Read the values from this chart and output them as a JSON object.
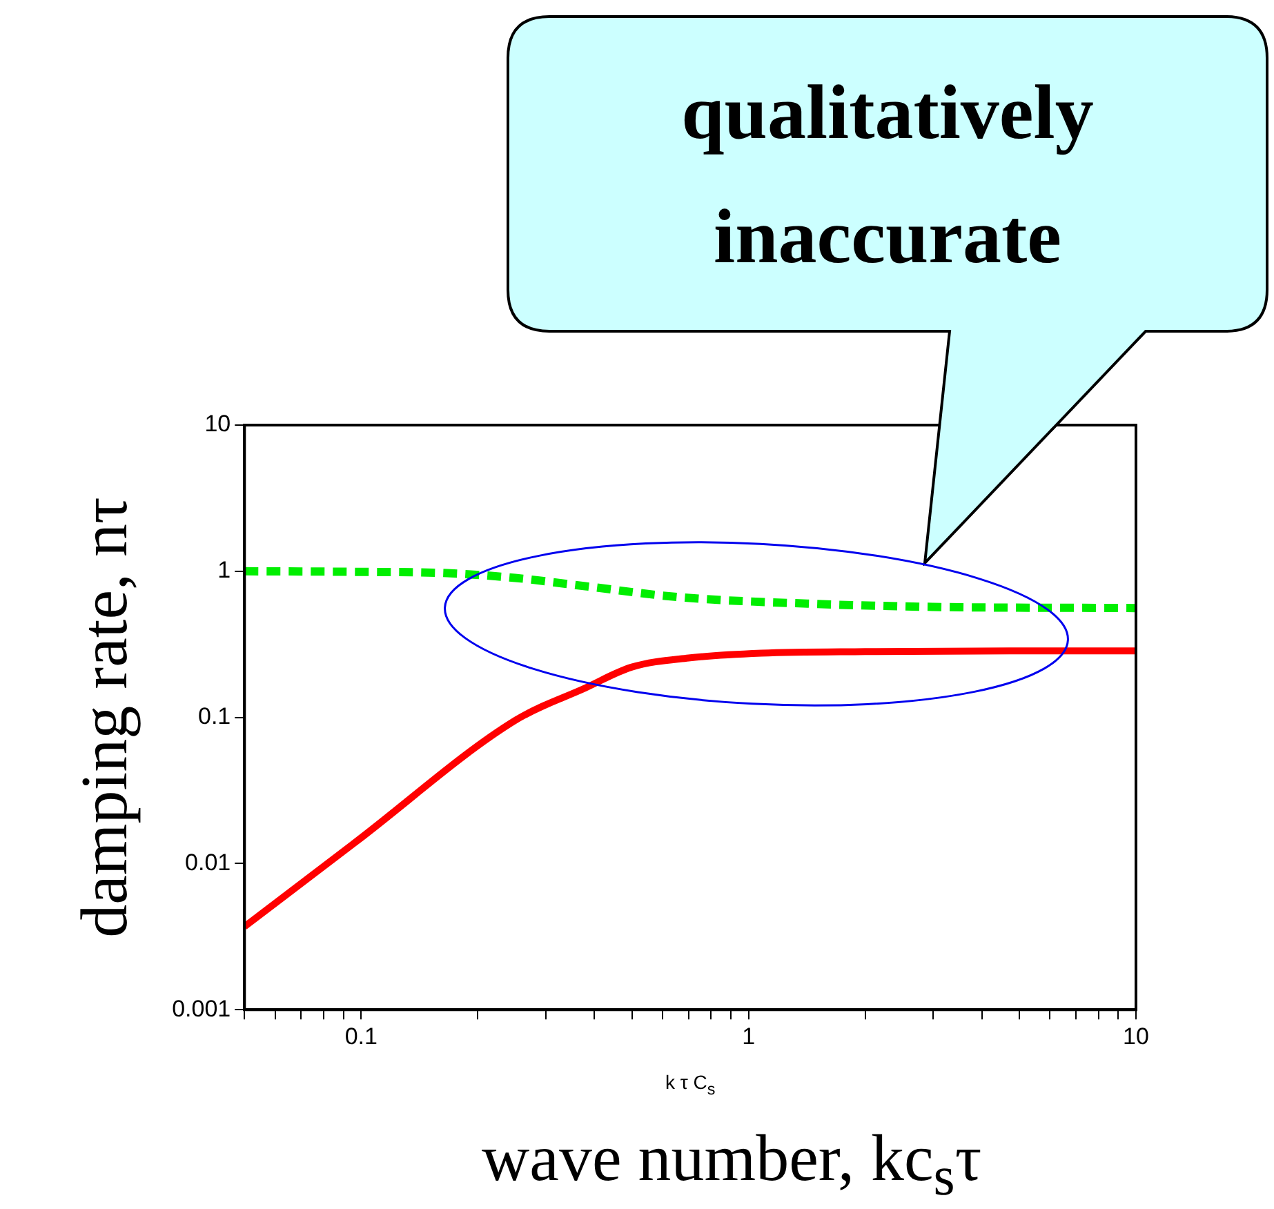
{
  "chart_data": {
    "type": "line",
    "xlabel": "k τ C$_{s}$",
    "ylabel": "damping rate, nτ",
    "annotations": [
      "qualitatively inaccurate",
      "wave number, kc$_{s}$τ"
    ],
    "log": "xy",
    "grid": false,
    "legend": false,
    "marker": "none",
    "xlim": [
      0.05,
      10
    ],
    "ylim": [
      0.001,
      10
    ],
    "xticks": [
      {
        "value": 0.05,
        "label": null
      },
      {
        "value": 0.06,
        "label": null
      },
      {
        "value": 0.07,
        "label": null
      },
      {
        "value": 0.08,
        "label": null
      },
      {
        "value": 0.09,
        "label": null
      },
      0.1,
      {
        "value": 0.2,
        "label": null
      },
      {
        "value": 0.3,
        "label": null
      },
      {
        "value": 0.4,
        "label": null
      },
      {
        "value": 0.5,
        "label": null
      },
      {
        "value": 0.6,
        "label": null
      },
      {
        "value": 0.7,
        "label": null
      },
      {
        "value": 0.8,
        "label": null
      },
      {
        "value": 0.9,
        "label": null
      },
      1,
      {
        "value": 2,
        "label": null
      },
      {
        "value": 3,
        "label": null
      },
      {
        "value": 4,
        "label": null
      },
      {
        "value": 5,
        "label": null
      },
      {
        "value": 6,
        "label": null
      },
      {
        "value": 7,
        "label": null
      },
      {
        "value": 8,
        "label": null
      },
      {
        "value": 9,
        "label": null
      },
      10
    ],
    "yticks": [
      0.001,
      0.01,
      0.1,
      1,
      10
    ],
    "series": [
      {
        "color": "#ff0000",
        "line_style": "solid",
        "x": [
          0.05,
          0.097,
          0.251,
          0.379,
          0.5,
          0.7,
          1.08,
          2,
          5,
          10
        ],
        "values": [
          0.0037,
          0.0141,
          0.096,
          0.159,
          0.221,
          0.255,
          0.275,
          0.282,
          0.285,
          0.285
        ]
      },
      {
        "color": "#00ee00",
        "line_style": "dashed",
        "x": [
          0.05,
          0.1,
          0.167,
          0.25,
          0.379,
          0.66,
          1.42,
          3,
          10
        ],
        "values": [
          1.0,
          0.99,
          0.97,
          0.9,
          0.79,
          0.665,
          0.6,
          0.57,
          0.56
        ]
      }
    ]
  }
}
